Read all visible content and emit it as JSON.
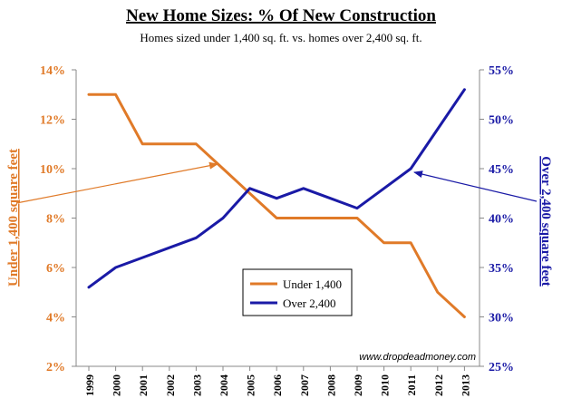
{
  "chart_data": {
    "type": "line",
    "title": "New Home Sizes:  % Of New Construction",
    "subtitle": "Homes sized under 1,400 sq. ft. vs. homes over 2,400 sq. ft.",
    "x": [
      "1999",
      "2000",
      "2001",
      "2002",
      "2003",
      "2004",
      "2005",
      "2006",
      "2007",
      "2008",
      "2009",
      "2010",
      "2011",
      "2012",
      "2013"
    ],
    "y_left": {
      "label": "Under 1,400 square feet",
      "ticks": [
        "2%",
        "4%",
        "6%",
        "8%",
        "10%",
        "12%",
        "14%"
      ],
      "range": [
        2,
        14
      ]
    },
    "y_right": {
      "label": "Over 2,400 square feet",
      "ticks": [
        "25%",
        "30%",
        "35%",
        "40%",
        "45%",
        "50%",
        "55%"
      ],
      "range": [
        25,
        55
      ]
    },
    "series": [
      {
        "name": "Under 1,400",
        "axis": "left",
        "color": "#e07a28",
        "values": [
          13,
          13,
          11,
          11,
          11,
          10,
          9,
          8,
          8,
          8,
          8,
          7,
          7,
          5,
          4
        ]
      },
      {
        "name": "Over 2,400",
        "axis": "right",
        "color": "#1a1aa6",
        "values": [
          33,
          35,
          36,
          37,
          38,
          40,
          43,
          42,
          43,
          42,
          41,
          43,
          45,
          49,
          53
        ]
      }
    ],
    "legend_placement": "bottom-center",
    "grid": false,
    "watermark": "www.dropdeadmoney.com"
  }
}
